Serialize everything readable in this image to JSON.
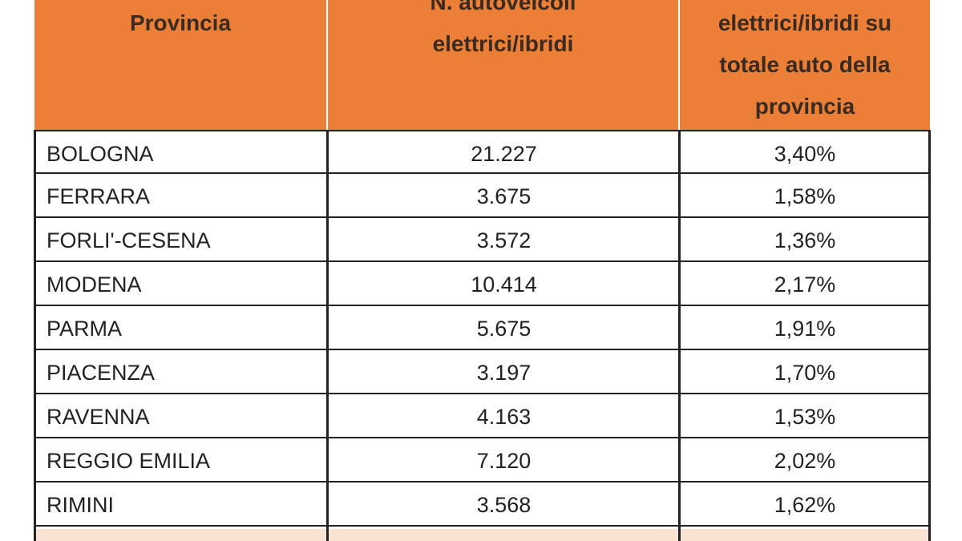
{
  "table": {
    "header": [
      [
        "Provincia"
      ],
      [
        "N. autoveicoli",
        "elettrici/ibridi"
      ],
      [
        "elettrici/ibridi su",
        "totale auto della",
        "provincia"
      ]
    ],
    "rows": [
      [
        "BOLOGNA",
        "21.227",
        "3,40%"
      ],
      [
        "FERRARA",
        "3.675",
        "1,58%"
      ],
      [
        "FORLI'-CESENA",
        "3.572",
        "1,36%"
      ],
      [
        "MODENA",
        "10.414",
        "2,17%"
      ],
      [
        "PARMA",
        "5.675",
        "1,91%"
      ],
      [
        "PIACENZA",
        "3.197",
        "1,70%"
      ],
      [
        "RAVENNA",
        "4.163",
        "1,53%"
      ],
      [
        "REGGIO EMILIA",
        "7.120",
        "2,02%"
      ],
      [
        "RIMINI",
        "3.568",
        "1,62%"
      ]
    ]
  }
}
